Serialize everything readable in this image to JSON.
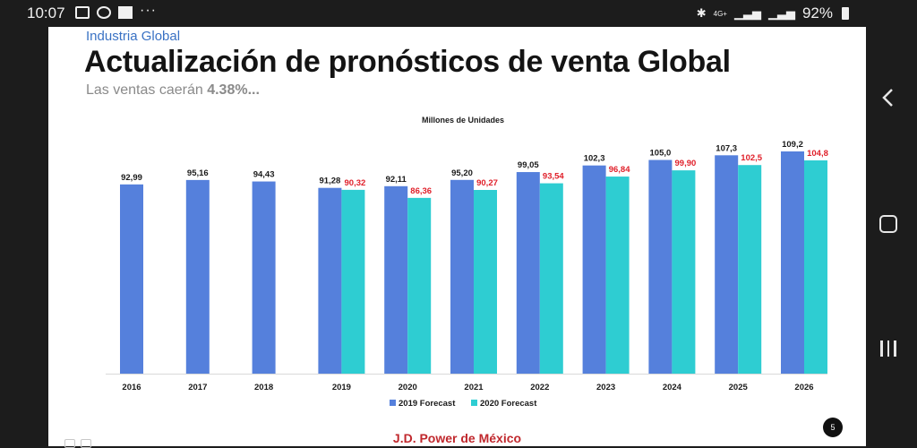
{
  "status_bar": {
    "time": "10:07",
    "network": "4G+",
    "battery": "92%",
    "icons": [
      "image-icon",
      "whatsapp-icon",
      "mail-icon",
      "more-icon",
      "bluetooth-icon",
      "signal-icon",
      "battery-icon"
    ]
  },
  "slide": {
    "kicker": "Industria Global",
    "title": "Actualización de pronósticos de venta Global",
    "subtitle_prefix": "Las ventas caerán ",
    "subtitle_value": "4.38%...",
    "footer": "J.D. Power de México",
    "page_number": "5"
  },
  "colors": {
    "series_2019": "#5580dc",
    "series_2020": "#2ecdd2",
    "label_2019": "#1a1a1a",
    "label_2020": "#e0202a"
  },
  "chart_data": {
    "type": "bar",
    "title": "Millones de Unidades",
    "categories": [
      "2016",
      "2017",
      "2018",
      "2019",
      "2020",
      "2021",
      "2022",
      "2023",
      "2024",
      "2025",
      "2026"
    ],
    "series": [
      {
        "name": "2019 Forecast",
        "values": [
          92.99,
          95.16,
          94.43,
          91.28,
          92.11,
          95.2,
          99.05,
          102.3,
          105.0,
          107.3,
          109.2
        ],
        "labels": [
          "92,99",
          "95,16",
          "94,43",
          "91,28",
          "92,11",
          "95,20",
          "99,05",
          "102,3",
          "105,0",
          "107,3",
          "109,2"
        ]
      },
      {
        "name": "2020 Forecast",
        "values": [
          null,
          null,
          null,
          90.32,
          86.36,
          90.27,
          93.54,
          96.84,
          99.9,
          102.5,
          104.8
        ],
        "labels": [
          null,
          null,
          null,
          "90,32",
          "86,36",
          "90,27",
          "93,54",
          "96,84",
          "99,90",
          "102,5",
          "104,8"
        ]
      }
    ],
    "ylim": [
      0,
      109.2
    ],
    "legend": "bottom-center",
    "grid": false
  }
}
